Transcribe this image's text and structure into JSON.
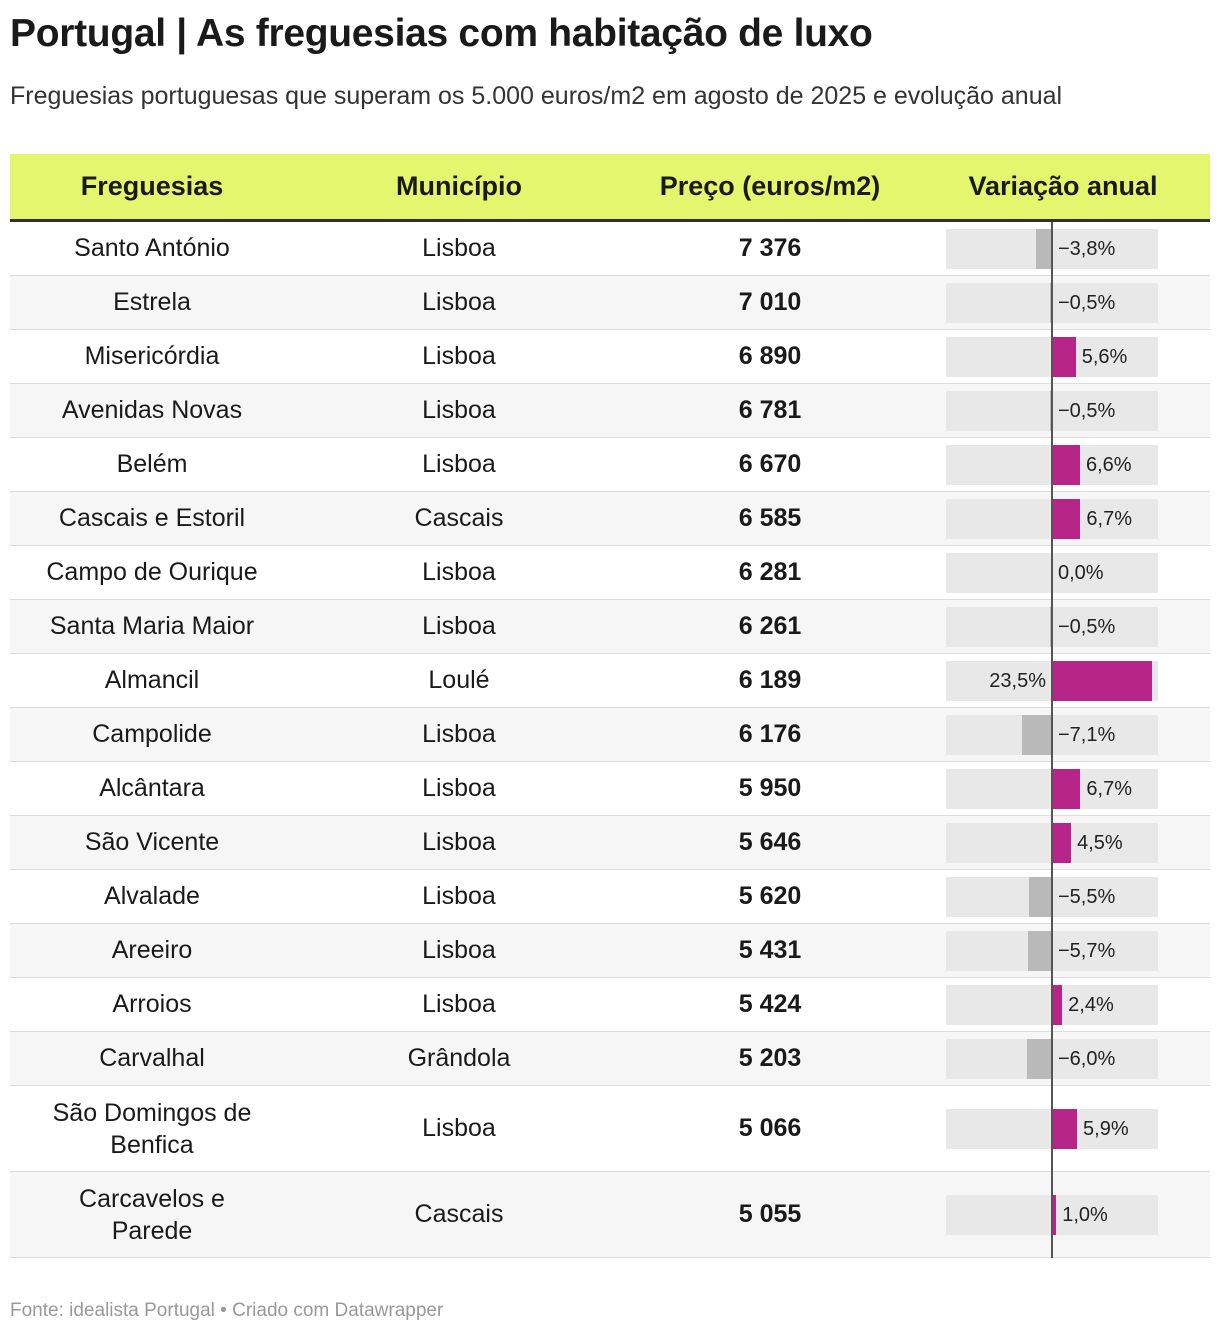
{
  "header": {
    "title": "Portugal | As freguesias com habitação de luxo",
    "subtitle": "Freguesias portuguesas que superam os 5.000 euros/m2 em agosto de 2025 e evolução anual"
  },
  "footer": {
    "text": "Fonte: idealista Portugal • Criado com Datawrapper"
  },
  "colors": {
    "header_bg": "#e4f56e",
    "positive_bar": "#b82588",
    "negative_bar": "#b9b9b9",
    "bar_background": "#e8e8e8"
  },
  "chart_data": {
    "type": "table",
    "title": "Portugal | As freguesias com habitação de luxo",
    "columns": [
      "Freguesias",
      "Município",
      "Preço (euros/m2)",
      "Variação anual"
    ],
    "bar_range": [
      -25,
      25
    ],
    "rows": [
      {
        "freguesia": "Santo António",
        "municipio": "Lisboa",
        "preco": "7 376",
        "variacao": -3.8,
        "variacao_label": "−3,8%"
      },
      {
        "freguesia": "Estrela",
        "municipio": "Lisboa",
        "preco": "7 010",
        "variacao": -0.5,
        "variacao_label": "−0,5%"
      },
      {
        "freguesia": "Misericórdia",
        "municipio": "Lisboa",
        "preco": "6 890",
        "variacao": 5.6,
        "variacao_label": "5,6%"
      },
      {
        "freguesia": "Avenidas Novas",
        "municipio": "Lisboa",
        "preco": "6 781",
        "variacao": -0.5,
        "variacao_label": "−0,5%"
      },
      {
        "freguesia": "Belém",
        "municipio": "Lisboa",
        "preco": "6 670",
        "variacao": 6.6,
        "variacao_label": "6,6%"
      },
      {
        "freguesia": "Cascais e Estoril",
        "municipio": "Cascais",
        "preco": "6 585",
        "variacao": 6.7,
        "variacao_label": "6,7%"
      },
      {
        "freguesia": "Campo de Ourique",
        "municipio": "Lisboa",
        "preco": "6 281",
        "variacao": 0.0,
        "variacao_label": "0,0%"
      },
      {
        "freguesia": "Santa Maria Maior",
        "municipio": "Lisboa",
        "preco": "6 261",
        "variacao": -0.5,
        "variacao_label": "−0,5%"
      },
      {
        "freguesia": "Almancil",
        "municipio": "Loulé",
        "preco": "6 189",
        "variacao": 23.5,
        "variacao_label": "23,5%"
      },
      {
        "freguesia": "Campolide",
        "municipio": "Lisboa",
        "preco": "6 176",
        "variacao": -7.1,
        "variacao_label": "−7,1%"
      },
      {
        "freguesia": "Alcântara",
        "municipio": "Lisboa",
        "preco": "5 950",
        "variacao": 6.7,
        "variacao_label": "6,7%"
      },
      {
        "freguesia": "São Vicente",
        "municipio": "Lisboa",
        "preco": "5 646",
        "variacao": 4.5,
        "variacao_label": "4,5%"
      },
      {
        "freguesia": "Alvalade",
        "municipio": "Lisboa",
        "preco": "5 620",
        "variacao": -5.5,
        "variacao_label": "−5,5%"
      },
      {
        "freguesia": "Areeiro",
        "municipio": "Lisboa",
        "preco": "5 431",
        "variacao": -5.7,
        "variacao_label": "−5,7%"
      },
      {
        "freguesia": "Arroios",
        "municipio": "Lisboa",
        "preco": "5 424",
        "variacao": 2.4,
        "variacao_label": "2,4%"
      },
      {
        "freguesia": "Carvalhal",
        "municipio": "Grândola",
        "preco": "5 203",
        "variacao": -6.0,
        "variacao_label": "−6,0%"
      },
      {
        "freguesia": "São Domingos de Benfica",
        "municipio": "Lisboa",
        "preco": "5 066",
        "variacao": 5.9,
        "variacao_label": "5,9%"
      },
      {
        "freguesia": "Carcavelos e Parede",
        "municipio": "Cascais",
        "preco": "5 055",
        "variacao": 1.0,
        "variacao_label": "1,0%"
      }
    ]
  }
}
